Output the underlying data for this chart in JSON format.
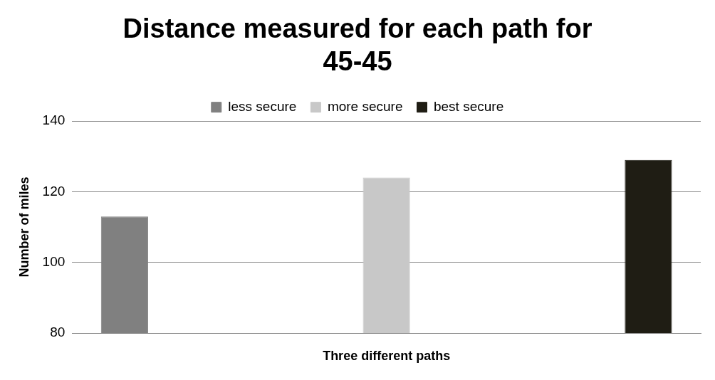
{
  "chart_data": {
    "type": "bar",
    "title": [
      "Distance measured for each path for",
      "45-45"
    ],
    "xlabel": "Three different paths",
    "ylabel": "Number of miles",
    "categories": [
      null,
      null,
      null
    ],
    "series": [
      {
        "name": "less secure",
        "color": "#808080",
        "values": [
          113,
          null,
          null
        ]
      },
      {
        "name": "more secure",
        "color": "#c8c8c8",
        "values": [
          null,
          124,
          null
        ]
      },
      {
        "name": "best secure",
        "color": "#1f1d14",
        "values": [
          null,
          null,
          129
        ]
      }
    ],
    "ylim": [
      80,
      140
    ],
    "yticks": [
      80,
      100,
      120,
      140
    ],
    "grid": "y",
    "legend": "top"
  }
}
